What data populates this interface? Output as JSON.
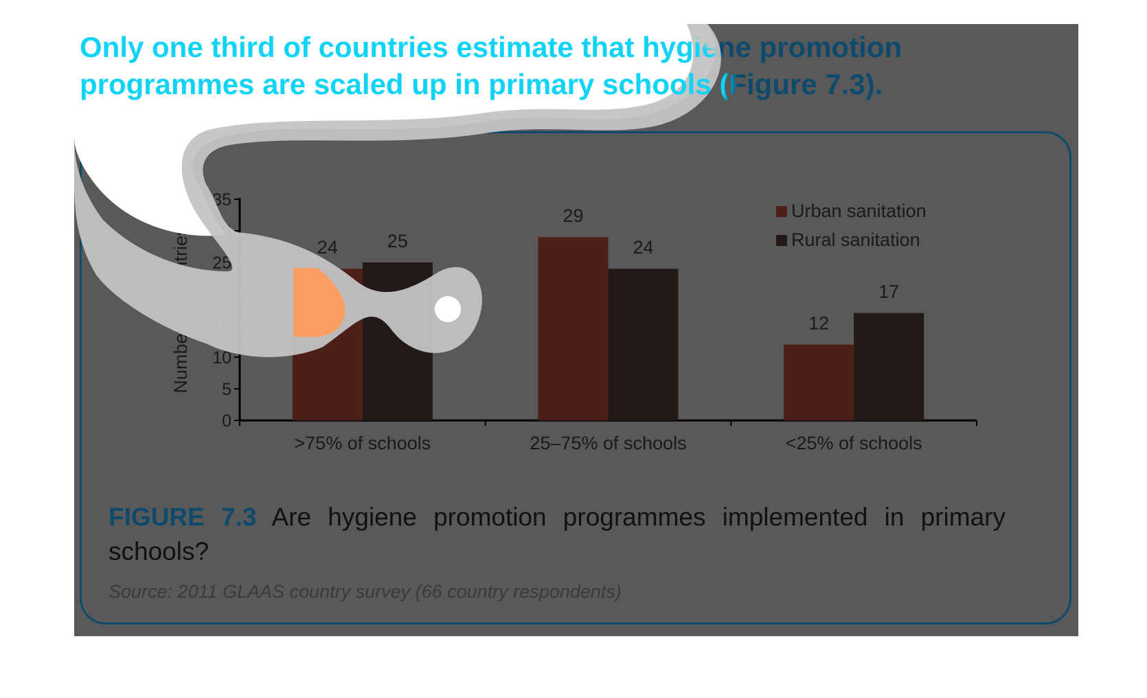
{
  "headline": {
    "text": "Only one third of countries estimate that hygiene promotion programmes are scaled up in primary schools (Figure 7.3)."
  },
  "figure": {
    "label": "FIGURE 7.3",
    "caption": "Are hygiene promotion programmes implemented in primary schools?",
    "source": "Source: 2011 GLAAS country survey (66 country respondents)"
  },
  "colors": {
    "background_panel": "#595959",
    "frame": "#0e4a6c",
    "urban": "#4c2019",
    "rural": "#231916",
    "highlight_text": "#11d3f5",
    "highlight_bar": "#ff9c5c",
    "overlay_ring": "#c4c4c4"
  },
  "chart_data": {
    "type": "bar",
    "categories": [
      ">75% of schools",
      "25–75% of schools",
      "<25% of schools"
    ],
    "series": [
      {
        "name": "Urban sanitation",
        "values": [
          24,
          29,
          12
        ],
        "color": "#4c2019"
      },
      {
        "name": "Rural sanitation",
        "values": [
          25,
          24,
          17
        ],
        "color": "#231916"
      }
    ],
    "ylabel": "Number of countries",
    "xlabel": "",
    "ylim": [
      0,
      35
    ],
    "yticks": [
      0,
      5,
      10,
      15,
      20,
      25,
      30,
      35
    ],
    "legend_position": "top-right",
    "grid": false,
    "data_labels": true
  }
}
